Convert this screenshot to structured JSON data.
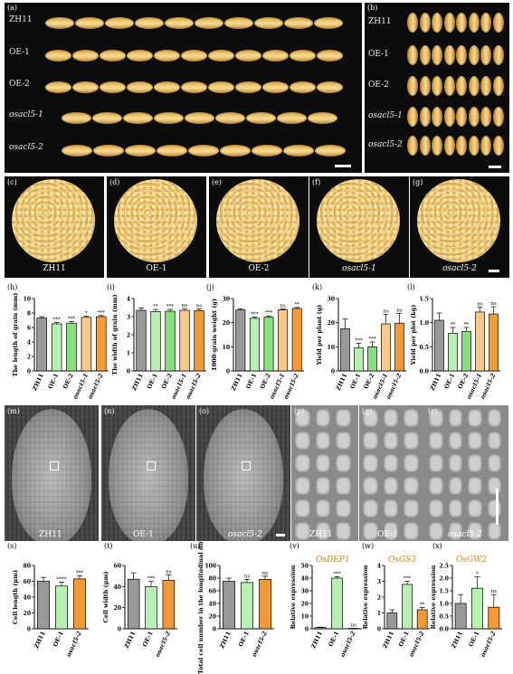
{
  "panels": {
    "a": "(a)",
    "b": "(b)",
    "c": "(c)",
    "d": "(d)",
    "e": "(e)",
    "f": "(f)",
    "g": "(g)",
    "h": "(h)",
    "i": "(i)",
    "j": "(j)",
    "k": "(k)",
    "l": "(l)",
    "m": "(m)",
    "n": "(n)",
    "o": "(o)",
    "p": "(p)",
    "q": "(q)",
    "r": "(r)",
    "s": "(s)",
    "t": "(t)",
    "u": "(u)",
    "v": "(v)",
    "w": "(w)",
    "x": "(x)"
  },
  "lines": [
    "ZH11",
    "OE-1",
    "OE-2",
    "osacl5-1",
    "osacl5-2"
  ],
  "sem_labels": {
    "m": "ZH11",
    "n": "OE-1",
    "o": "osacl5-2",
    "p": "ZH11",
    "q": "OE-1",
    "r": "osacl5-2"
  },
  "colors": {
    "ZH11": "#999999",
    "OE-1": "#b8f0b4",
    "OE-2": "#88e07a",
    "osacl5-1": "#fbc88c",
    "osacl5-2": "#f39a36"
  },
  "chart_data": [
    {
      "id": "h",
      "type": "bar",
      "ylabel": "The length of grain (mm)",
      "ylim": [
        0,
        10
      ],
      "yticks": [
        "0",
        "2",
        "4",
        "6",
        "8",
        "10"
      ],
      "categories": [
        "ZH11",
        "OE-1",
        "OE-2",
        "osacl5-1",
        "osacl5-2"
      ],
      "values": [
        7.3,
        6.5,
        6.6,
        7.4,
        7.5
      ],
      "errors": [
        0.2,
        0.2,
        0.2,
        0.15,
        0.15
      ],
      "sig": [
        "",
        "***",
        "***",
        "*",
        "***"
      ]
    },
    {
      "id": "i",
      "type": "bar",
      "ylabel": "The width of grain (mm)",
      "ylim": [
        0,
        4
      ],
      "yticks": [
        "0",
        "1",
        "2",
        "3",
        "4"
      ],
      "categories": [
        "ZH11",
        "OE-1",
        "OE-2",
        "osacl5-1",
        "osacl5-2"
      ],
      "values": [
        3.35,
        3.28,
        3.3,
        3.35,
        3.33
      ],
      "errors": [
        0.12,
        0.12,
        0.1,
        0.1,
        0.1
      ],
      "sig": [
        "",
        "**",
        "***",
        "ns",
        "ns"
      ]
    },
    {
      "id": "j",
      "type": "bar",
      "ylabel": "1000-grain weight (g)",
      "ylim": [
        0,
        30
      ],
      "yticks": [
        "0",
        "10",
        "20",
        "30"
      ],
      "categories": [
        "ZH11",
        "OE-1",
        "OE-2",
        "osacl5-1",
        "osacl5-2"
      ],
      "values": [
        25.3,
        21.8,
        22.3,
        25.3,
        25.9
      ],
      "errors": [
        0.5,
        0.5,
        0.5,
        0.4,
        0.4
      ],
      "sig": [
        "",
        "***",
        "***",
        "ns",
        "**"
      ]
    },
    {
      "id": "k",
      "type": "bar",
      "ylabel": "Yield per plant (g)",
      "ylim": [
        0,
        30
      ],
      "yticks": [
        "0",
        "10",
        "20",
        "30"
      ],
      "categories": [
        "ZH11",
        "OE-1",
        "OE-2",
        "osacl5-1",
        "osacl5-2"
      ],
      "values": [
        17.5,
        9.5,
        10,
        19.5,
        19.8
      ],
      "errors": [
        4,
        2,
        2,
        4,
        4
      ],
      "sig": [
        "",
        "***",
        "***",
        "ns",
        "ns"
      ]
    },
    {
      "id": "l",
      "type": "bar",
      "ylabel": "Yield per plot (kg)",
      "ylim": [
        0,
        1.5
      ],
      "yticks": [
        "0.0",
        "0.5",
        "1.0",
        "1.5"
      ],
      "categories": [
        "ZH11",
        "OE-1",
        "OE-2",
        "osacl5-1",
        "osacl5-2"
      ],
      "values": [
        1.05,
        0.78,
        0.82,
        1.22,
        1.18
      ],
      "errors": [
        0.15,
        0.12,
        0.08,
        0.1,
        0.15
      ],
      "sig": [
        "",
        "**",
        "**",
        "ns",
        "ns"
      ]
    },
    {
      "id": "s",
      "type": "bar",
      "ylabel": "Cell length (μm)",
      "ylim": [
        0,
        80
      ],
      "yticks": [
        "0",
        "20",
        "40",
        "60",
        "80"
      ],
      "categories": [
        "ZH11",
        "OE-1",
        "osacl5-2"
      ],
      "values": [
        60,
        54,
        63
      ],
      "errors": [
        5,
        5,
        4
      ],
      "sig": [
        "",
        "****",
        "***"
      ]
    },
    {
      "id": "t",
      "type": "bar",
      "ylabel": "Cell width (μm)",
      "ylim": [
        0,
        60
      ],
      "yticks": [
        "0",
        "20",
        "40",
        "60"
      ],
      "categories": [
        "ZH11",
        "OE-1",
        "osacl5-2"
      ],
      "values": [
        47,
        40,
        46
      ],
      "errors": [
        6,
        5,
        5
      ],
      "sig": [
        "",
        "***",
        "ns"
      ]
    },
    {
      "id": "u",
      "type": "bar",
      "ylabel": "Total cell number in the longitudinal direction",
      "ylim": [
        0,
        100
      ],
      "yticks": [
        "0",
        "20",
        "40",
        "60",
        "80",
        "100"
      ],
      "categories": [
        "ZH11",
        "OE-1",
        "osacl5-2"
      ],
      "values": [
        75,
        73,
        78
      ],
      "errors": [
        5,
        5,
        5
      ],
      "sig": [
        "",
        "ns",
        "ns"
      ]
    },
    {
      "id": "v",
      "type": "bar",
      "title": "OsDEP1",
      "ylabel": "Relative expression",
      "ylim": [
        0,
        50
      ],
      "yticks": [
        "0",
        "10",
        "20",
        "30",
        "40",
        "50"
      ],
      "categories": [
        "ZH11",
        "OE-1",
        "osacl5-2"
      ],
      "values": [
        1,
        40,
        0.3
      ],
      "errors": [
        0.3,
        1,
        0.1
      ],
      "sig": [
        "",
        "***",
        "ns"
      ]
    },
    {
      "id": "w",
      "type": "bar",
      "title": "OsGS3",
      "ylabel": "Relative expression",
      "ylim": [
        0,
        4
      ],
      "yticks": [
        "0",
        "1",
        "2",
        "3",
        "4"
      ],
      "categories": [
        "ZH11",
        "OE-1",
        "osacl5-2"
      ],
      "values": [
        1,
        2.8,
        1.2
      ],
      "errors": [
        0.2,
        0.2,
        0.15
      ],
      "sig": [
        "",
        "***",
        "**"
      ]
    },
    {
      "id": "x",
      "type": "bar",
      "title": "OsGW2",
      "ylabel": "Relative expression",
      "ylim": [
        0,
        2.5
      ],
      "yticks": [
        "0.0",
        "0.5",
        "1.0",
        "1.5",
        "2.0",
        "2.5"
      ],
      "categories": [
        "ZH11",
        "OE-1",
        "osacl5-2"
      ],
      "values": [
        1,
        1.6,
        0.85
      ],
      "errors": [
        0.35,
        0.45,
        0.5
      ],
      "sig": [
        "",
        "*",
        "ns"
      ]
    }
  ]
}
